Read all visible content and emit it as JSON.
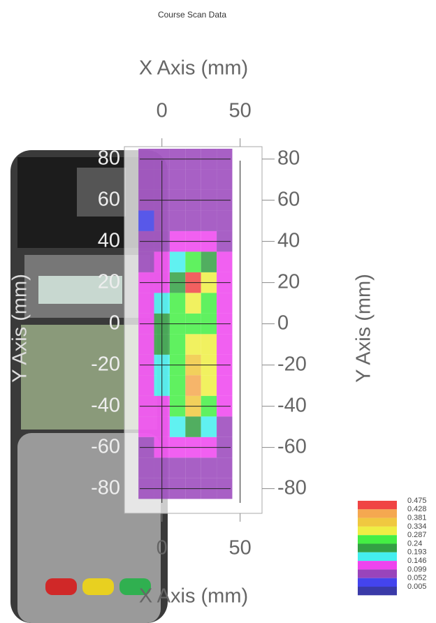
{
  "chart_data": {
    "type": "contour",
    "title": "Course Scan Data",
    "x_label": "X Axis (mm)",
    "y_label": "Y Axis (mm)",
    "xlim": [
      -24,
      64
    ],
    "ylim": [
      -92,
      86
    ],
    "xticks": [
      0,
      50
    ],
    "yticks": [
      80,
      60,
      40,
      20,
      0,
      -20,
      -40,
      -60,
      -80
    ],
    "grid": true,
    "x": [
      -10,
      0,
      10,
      20,
      30,
      40
    ],
    "y": [
      80,
      70,
      60,
      50,
      40,
      30,
      20,
      10,
      0,
      -10,
      -20,
      -30,
      -40,
      -50,
      -60,
      -70,
      -80
    ],
    "z": [
      [
        0.06,
        0.06,
        0.06,
        0.06,
        0.06,
        0.06
      ],
      [
        0.06,
        0.06,
        0.06,
        0.06,
        0.06,
        0.06
      ],
      [
        0.06,
        0.06,
        0.07,
        0.07,
        0.07,
        0.06
      ],
      [
        0.05,
        0.06,
        0.08,
        0.09,
        0.08,
        0.06
      ],
      [
        0.06,
        0.07,
        0.1,
        0.14,
        0.12,
        0.08
      ],
      [
        0.08,
        0.1,
        0.16,
        0.25,
        0.2,
        0.1
      ],
      [
        0.1,
        0.13,
        0.22,
        0.45,
        0.3,
        0.12
      ],
      [
        0.12,
        0.16,
        0.25,
        0.33,
        0.28,
        0.12
      ],
      [
        0.13,
        0.2,
        0.24,
        0.28,
        0.26,
        0.12
      ],
      [
        0.12,
        0.2,
        0.26,
        0.33,
        0.29,
        0.12
      ],
      [
        0.13,
        0.18,
        0.27,
        0.37,
        0.3,
        0.11
      ],
      [
        0.14,
        0.16,
        0.28,
        0.39,
        0.3,
        0.11
      ],
      [
        0.13,
        0.14,
        0.25,
        0.34,
        0.27,
        0.1
      ],
      [
        0.11,
        0.12,
        0.16,
        0.22,
        0.18,
        0.08
      ],
      [
        0.09,
        0.1,
        0.11,
        0.13,
        0.1,
        0.07
      ],
      [
        0.08,
        0.08,
        0.08,
        0.09,
        0.08,
        0.06
      ],
      [
        0.07,
        0.07,
        0.07,
        0.07,
        0.06,
        0.06
      ]
    ],
    "levels": [
      0.475,
      0.428,
      0.381,
      0.334,
      0.287,
      0.24,
      0.193,
      0.146,
      0.099,
      0.052,
      0.005
    ],
    "colors": [
      "#f04444",
      "#f5a850",
      "#f0c840",
      "#eeee44",
      "#44ee44",
      "#33a044",
      "#44eeee",
      "#ee44ee",
      "#9944bb",
      "#4444ee"
    ],
    "low_color": "#3a3aa8"
  }
}
